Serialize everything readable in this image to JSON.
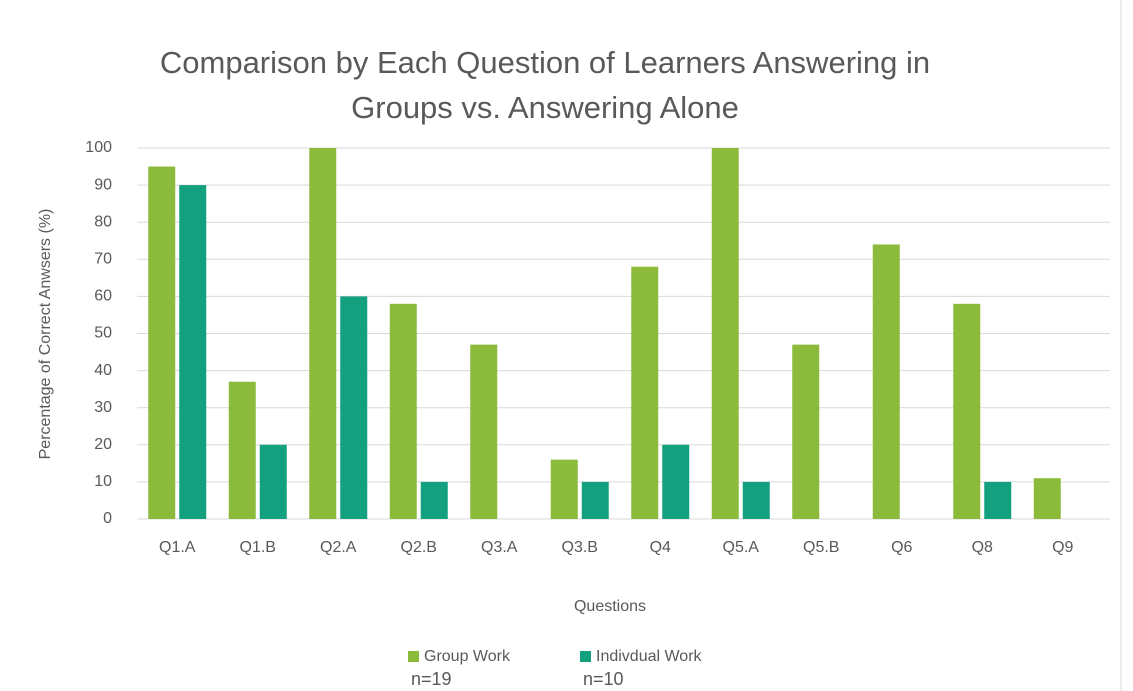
{
  "chart_data": {
    "type": "bar",
    "title": "Comparison by Each Question of Learners Answering in Groups vs. Answering Alone",
    "x_label": "Questions",
    "y_label": "Percentage of Correct Anwsers (%)",
    "categories": [
      "Q1.A",
      "Q1.B",
      "Q2.A",
      "Q2.B",
      "Q3.A",
      "Q3.B",
      "Q4",
      "Q5.A",
      "Q5.B",
      "Q6",
      "Q8",
      "Q9"
    ],
    "series": [
      {
        "name": "Group Work",
        "note": "n=19",
        "color": "#8cbb3c",
        "values": [
          95,
          37,
          100,
          58,
          47,
          16,
          68,
          100,
          47,
          74,
          58,
          11
        ]
      },
      {
        "name": "Indivdual Work",
        "note": "n=10",
        "color": "#13a07f",
        "values": [
          90,
          20,
          60,
          10,
          0,
          10,
          20,
          10,
          0,
          0,
          10,
          0
        ]
      }
    ],
    "ylim": [
      0,
      100
    ],
    "yticks": [
      0,
      10,
      20,
      30,
      40,
      50,
      60,
      70,
      80,
      90,
      100
    ],
    "grid": true,
    "legend": "bottom"
  }
}
